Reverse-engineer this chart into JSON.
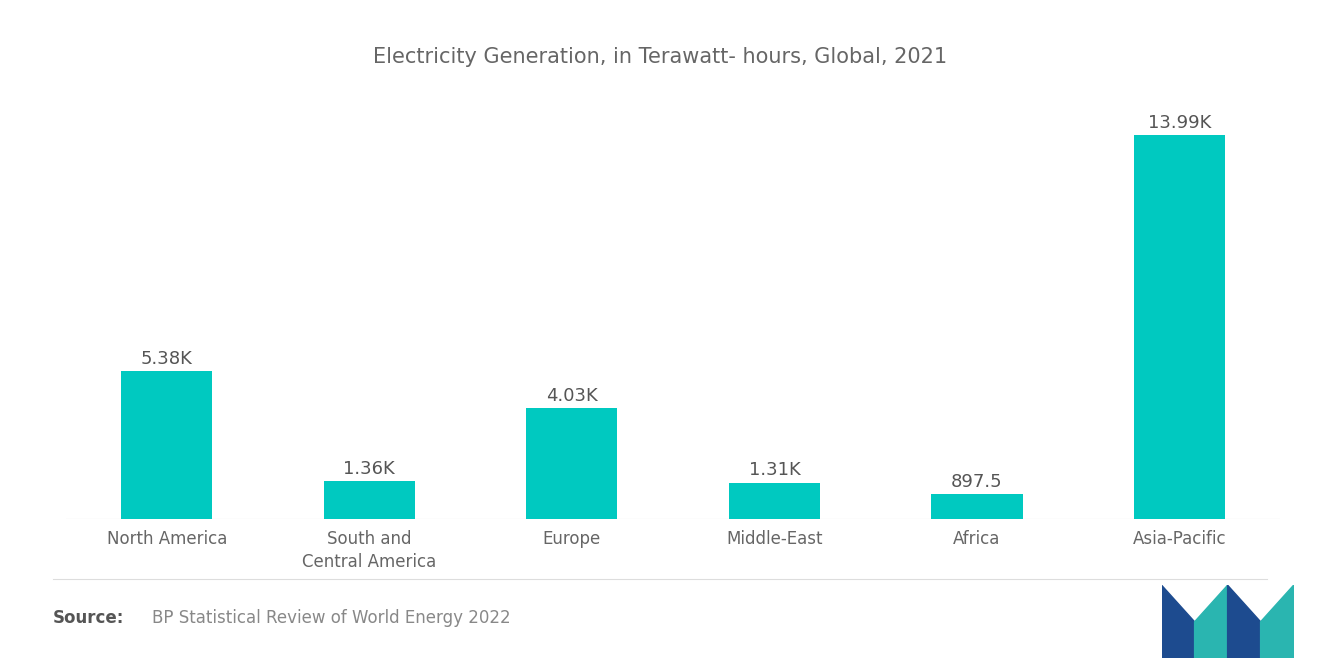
{
  "title": "Electricity Generation, in Terawatt- hours, Global, 2021",
  "categories": [
    "North America",
    "South and\nCentral America",
    "Europe",
    "Middle-East",
    "Africa",
    "Asia-Pacific"
  ],
  "values": [
    5380,
    1360,
    4030,
    1310,
    897.5,
    13990
  ],
  "labels": [
    "5.38K",
    "1.36K",
    "4.03K",
    "1.31K",
    "897.5",
    "13.99K"
  ],
  "bar_color": "#00C9C0",
  "background_color": "#ffffff",
  "title_color": "#666666",
  "label_color": "#555555",
  "tick_color": "#666666",
  "source_bold": "Source:",
  "source_text": "BP Statistical Review of World Energy 2022",
  "ylim": [
    0,
    16000
  ],
  "title_fontsize": 15,
  "label_fontsize": 13,
  "tick_fontsize": 12,
  "source_fontsize": 12,
  "bar_width": 0.45
}
